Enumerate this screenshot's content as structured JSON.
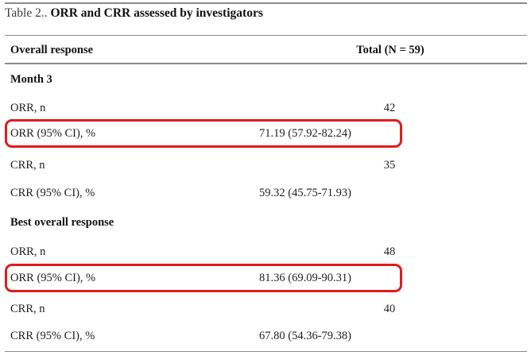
{
  "caption": {
    "label": "Table 2..",
    "title": "ORR and CRR assessed by investigators"
  },
  "table": {
    "header": {
      "col1": "Overall response",
      "col2": "Total (N = 59)"
    },
    "rows": [
      {
        "type": "section",
        "label": "Month 3",
        "value": "",
        "highlighted": false
      },
      {
        "type": "count",
        "label": "ORR, n",
        "value": "42",
        "highlighted": false
      },
      {
        "type": "ci",
        "label": "ORR (95% CI), %",
        "value": "71.19 (57.92-82.24)",
        "highlighted": true
      },
      {
        "type": "count",
        "label": "CRR, n",
        "value": "35",
        "highlighted": false
      },
      {
        "type": "ci",
        "label": "CRR (95% CI), %",
        "value": "59.32 (45.75-71.93)",
        "highlighted": false
      },
      {
        "type": "section",
        "label": "Best overall response",
        "value": "",
        "highlighted": false
      },
      {
        "type": "count",
        "label": "ORR, n",
        "value": "48",
        "highlighted": false
      },
      {
        "type": "ci",
        "label": "ORR (95% CI), %",
        "value": "81.36 (69.09-90.31)",
        "highlighted": true
      },
      {
        "type": "count",
        "label": "CRR, n",
        "value": "40",
        "highlighted": false
      },
      {
        "type": "ci",
        "label": "CRR (95% CI), %",
        "value": "67.80 (54.36-79.38)",
        "highlighted": false
      }
    ]
  },
  "colors": {
    "highlight_red": "#e11b1b",
    "rule_gray": "#8a8a8a",
    "text": "#1f1f1f"
  }
}
